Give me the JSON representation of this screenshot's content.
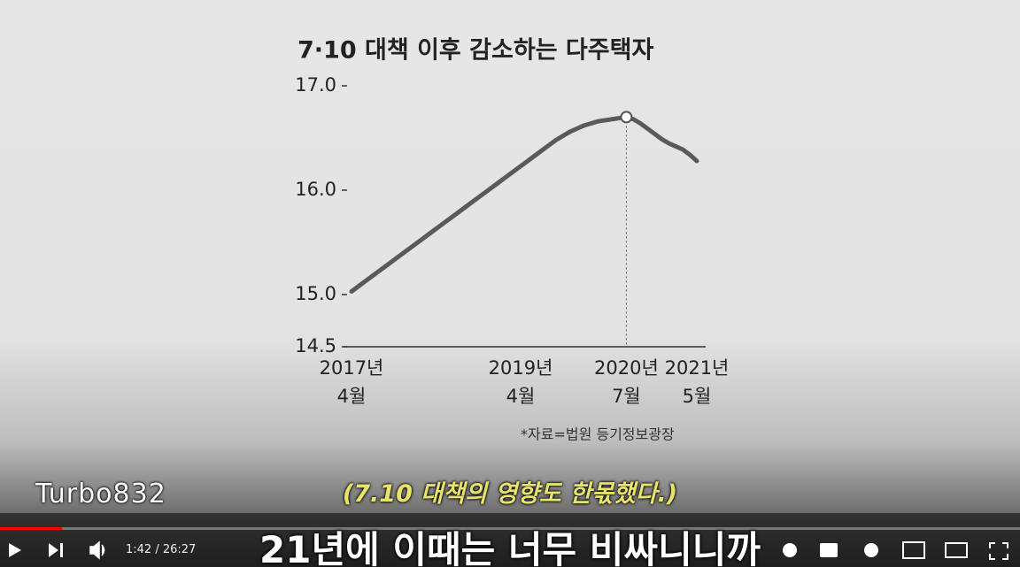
{
  "chart_data": {
    "type": "line",
    "title": "7·10 대책 이후 감소하는 다주택자",
    "categories": [
      "2017년\n4월",
      null,
      null,
      null,
      null,
      null,
      null,
      null,
      null,
      null,
      null,
      null,
      null,
      null,
      null,
      null,
      null,
      null,
      null,
      null,
      null,
      null,
      null,
      null,
      "2019년\n4월",
      null,
      null,
      null,
      null,
      null,
      null,
      null,
      null,
      null,
      null,
      null,
      null,
      null,
      null,
      "2020년\n7월",
      null,
      null,
      null,
      null,
      null,
      null,
      null,
      null,
      null,
      "2021년\n5월"
    ],
    "values": [
      15.03,
      15.08,
      15.13,
      15.18,
      15.23,
      15.28,
      15.33,
      15.38,
      15.43,
      15.48,
      15.53,
      15.58,
      15.63,
      15.68,
      15.73,
      15.78,
      15.83,
      15.88,
      15.93,
      15.98,
      16.03,
      16.08,
      16.13,
      16.18,
      16.23,
      16.28,
      16.33,
      16.38,
      16.43,
      16.48,
      16.52,
      16.56,
      16.59,
      16.62,
      16.64,
      16.66,
      16.67,
      16.68,
      16.69,
      16.7,
      16.68,
      16.64,
      16.59,
      16.54,
      16.49,
      16.45,
      16.42,
      16.39,
      16.34,
      16.28
    ],
    "color": "#5a5a5a",
    "ylim": [
      14.5,
      17.0
    ],
    "yticks": [
      14.5,
      {
        "value": 15,
        "label": "15.0"
      },
      {
        "value": 16,
        "label": "16.0"
      },
      {
        "value": 17,
        "label": "17.0"
      }
    ],
    "source": "*자료=법원 등기정보광장"
  },
  "video": {
    "channel": "Turbo832",
    "subtitle": "(7.10 대책의 영향도 한몫했다.)",
    "caption": "21년에 이때는 너무 비싸니니까",
    "time": "1:42 / 26:27"
  }
}
